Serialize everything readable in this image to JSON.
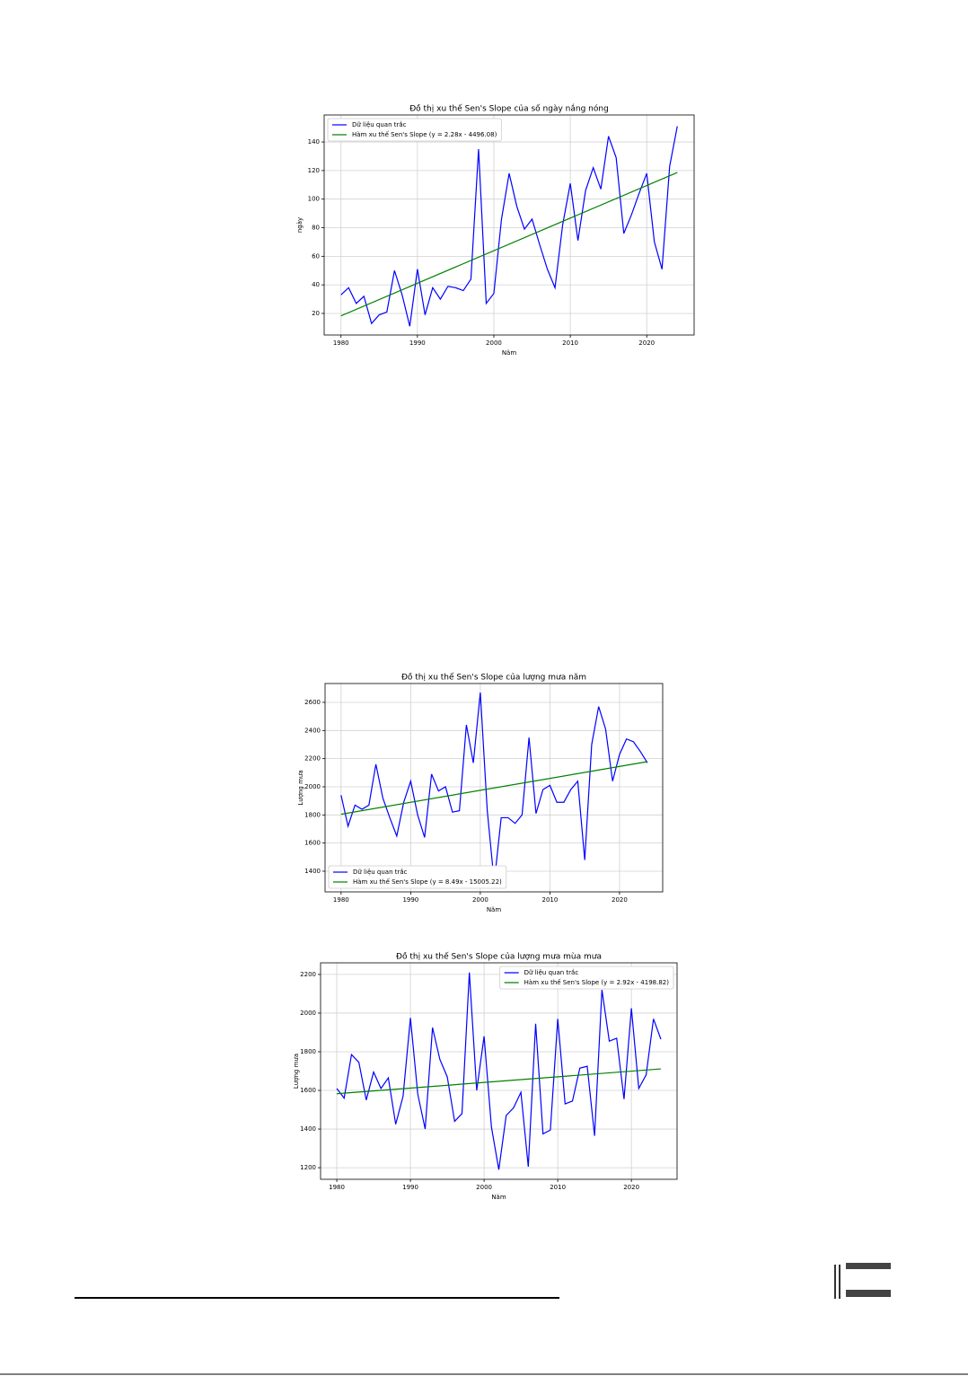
{
  "chart_data": [
    {
      "type": "line",
      "title": "Đồ thị xu thế  Sen's Slope của số ngày nắng nóng",
      "x_label": "Năm",
      "y_label": "ngày",
      "x": [
        1980,
        1981,
        1982,
        1983,
        1984,
        1985,
        1986,
        1987,
        1988,
        1989,
        1990,
        1991,
        1992,
        1993,
        1994,
        1995,
        1996,
        1997,
        1998,
        1999,
        2000,
        2001,
        2002,
        2003,
        2004,
        2005,
        2006,
        2007,
        2008,
        2009,
        2010,
        2011,
        2012,
        2013,
        2014,
        2015,
        2016,
        2017,
        2018,
        2019,
        2020,
        2021,
        2022,
        2023,
        2024
      ],
      "series": [
        {
          "name": "Dữ liệu quan trắc",
          "color": "#0000ff",
          "values": [
            33,
            38,
            27,
            32,
            13,
            19,
            21,
            50,
            33,
            11,
            51,
            19,
            38,
            30,
            39,
            38,
            36,
            44,
            135,
            27,
            34,
            86,
            118,
            95,
            79,
            86,
            68,
            51,
            38,
            82,
            111,
            71,
            106,
            122,
            107,
            144,
            129,
            76,
            89,
            104,
            118,
            70,
            51,
            123,
            151
          ]
        },
        {
          "name": "Hàm xu thế Sen's Slope (y = 2.28x - 4496.08)",
          "color": "#008000",
          "x": [
            1980,
            2024
          ],
          "values": [
            18.32,
            118.64
          ]
        }
      ],
      "xlim": [
        1977.8,
        2026.2
      ],
      "ylim": [
        4.9,
        158.9
      ],
      "xticks": [
        1980,
        1990,
        2000,
        2010,
        2020
      ],
      "yticks": [
        20,
        40,
        60,
        80,
        100,
        120,
        140
      ],
      "grid": true,
      "legend": "upper-left"
    },
    {
      "type": "line",
      "title": "Đồ thị xu thế  Sen's Slope của lượng mưa năm",
      "x_label": "Năm",
      "y_label": "Lượng mưa",
      "x": [
        1980,
        1981,
        1982,
        1983,
        1984,
        1985,
        1986,
        1987,
        1988,
        1989,
        1990,
        1991,
        1992,
        1993,
        1994,
        1995,
        1996,
        1997,
        1998,
        1999,
        2000,
        2001,
        2002,
        2003,
        2004,
        2005,
        2006,
        2007,
        2008,
        2009,
        2010,
        2011,
        2012,
        2013,
        2014,
        2015,
        2016,
        2017,
        2018,
        2019,
        2020,
        2021,
        2022,
        2023,
        2024
      ],
      "series": [
        {
          "name": "Dữ liệu quan trắc",
          "color": "#0000ff",
          "values": [
            1940,
            1720,
            1870,
            1840,
            1870,
            2160,
            1920,
            1780,
            1650,
            1890,
            2040,
            1800,
            1640,
            2090,
            1970,
            2000,
            1820,
            1830,
            2440,
            2170,
            2670,
            1830,
            1320,
            1780,
            1780,
            1740,
            1800,
            2350,
            1810,
            1980,
            2010,
            1890,
            1890,
            1980,
            2040,
            1480,
            2300,
            2570,
            2410,
            2040,
            2230,
            2340,
            2320,
            2250,
            2170
          ]
        },
        {
          "name": "Hàm xu thế Sen's Slope (y = 8.49x - 15005.22)",
          "color": "#008000",
          "x": [
            1980,
            2024
          ],
          "values": [
            1804.98,
            2178.54
          ]
        }
      ],
      "xlim": [
        1977.7,
        2026.2
      ],
      "ylim": [
        1253,
        2734
      ],
      "xticks": [
        1980,
        1990,
        2000,
        2010,
        2020
      ],
      "yticks": [
        1400,
        1600,
        1800,
        2000,
        2200,
        2400,
        2600
      ],
      "grid": true,
      "legend": "lower-left"
    },
    {
      "type": "line",
      "title": "Đồ thị xu thế  Sen's Slope của lượng mưa mùa mưa",
      "x_label": "Năm",
      "y_label": "Lượng mưa",
      "x": [
        1980,
        1981,
        1982,
        1983,
        1984,
        1985,
        1986,
        1987,
        1988,
        1989,
        1990,
        1991,
        1992,
        1993,
        1994,
        1995,
        1996,
        1997,
        1998,
        1999,
        2000,
        2001,
        2002,
        2003,
        2004,
        2005,
        2006,
        2007,
        2008,
        2009,
        2010,
        2011,
        2012,
        2013,
        2014,
        2015,
        2016,
        2017,
        2018,
        2019,
        2020,
        2021,
        2022,
        2023,
        2024
      ],
      "series": [
        {
          "name": "Dữ liệu quan trắc",
          "color": "#0000ff",
          "values": [
            1610,
            1560,
            1785,
            1745,
            1550,
            1695,
            1610,
            1665,
            1425,
            1570,
            1975,
            1580,
            1400,
            1925,
            1760,
            1670,
            1440,
            1480,
            2210,
            1600,
            1880,
            1410,
            1190,
            1470,
            1510,
            1590,
            1205,
            1945,
            1375,
            1395,
            1970,
            1530,
            1545,
            1715,
            1725,
            1365,
            2120,
            1855,
            1870,
            1555,
            2025,
            1610,
            1680,
            1970,
            1865
          ]
        },
        {
          "name": "Hàm xu thế Sen's Slope (y = 2.92x - 4198.82)",
          "color": "#008000",
          "x": [
            1980,
            2024
          ],
          "values": [
            1582.78,
            1711.26
          ]
        }
      ],
      "xlim": [
        1977.8,
        2026.2
      ],
      "ylim": [
        1140,
        2260
      ],
      "xticks": [
        1980,
        1990,
        2000,
        2010,
        2020
      ],
      "yticks": [
        1200,
        1400,
        1600,
        1800,
        2000,
        2200
      ],
      "grid": true,
      "legend": "upper-right"
    }
  ]
}
